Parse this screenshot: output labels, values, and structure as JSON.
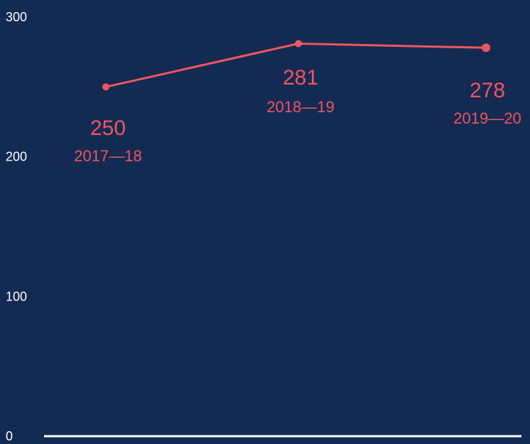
{
  "chart_data": {
    "type": "line",
    "categories": [
      "2017—18",
      "2018—19",
      "2019—20"
    ],
    "values": [
      250,
      281,
      278
    ],
    "data_labels": [
      "250",
      "281",
      "278"
    ],
    "ylim": [
      0,
      300
    ],
    "y_ticks": [
      0,
      100,
      200,
      300
    ],
    "y_tick_labels": [
      "0",
      "100",
      "200",
      "300"
    ],
    "grid": false,
    "title": "",
    "xlabel": "",
    "ylabel": "",
    "colors": {
      "background": "#132a52",
      "line": "#f0565e",
      "text": "#ffffff",
      "axis": "#ffffff"
    }
  }
}
